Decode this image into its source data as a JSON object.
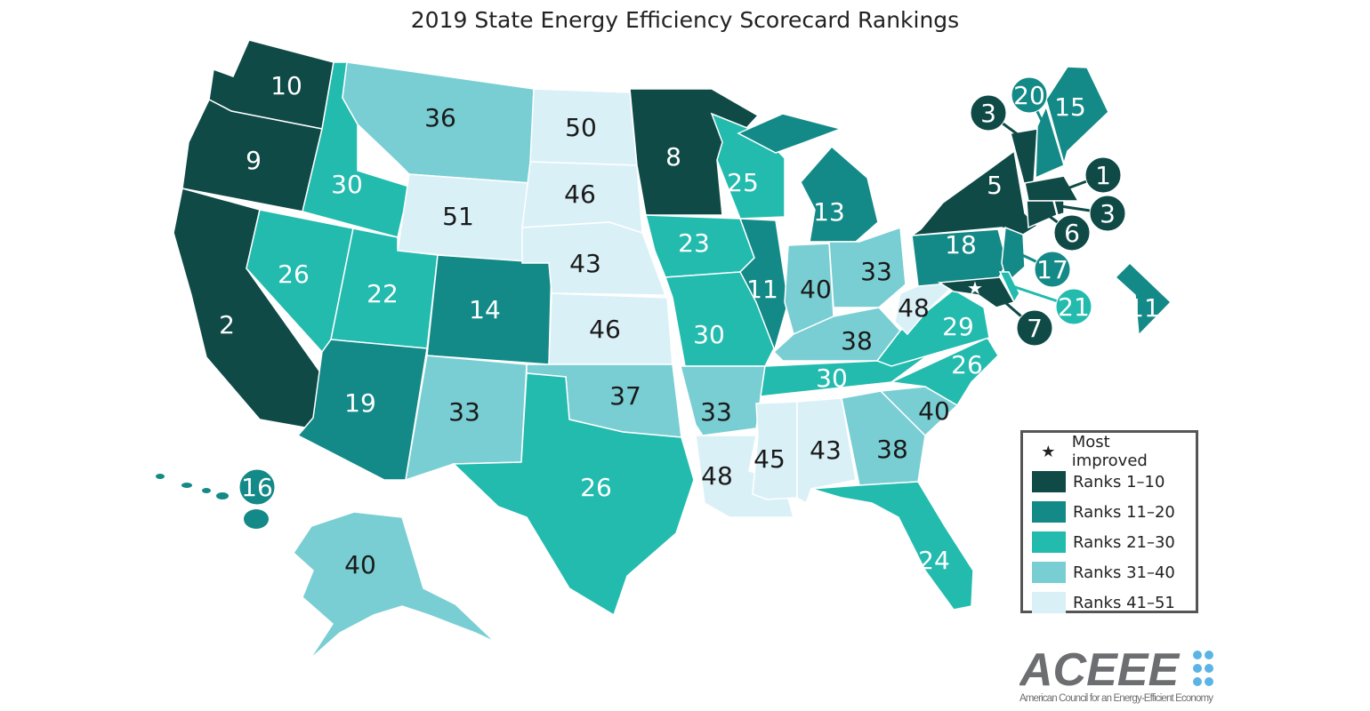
{
  "title": "2019 State Energy Efficiency Scorecard Rankings",
  "colors": {
    "ranks_1_10": "#0f4a47",
    "ranks_11_20": "#138a87",
    "ranks_21_30": "#22bbae",
    "ranks_31_40": "#79ced3",
    "ranks_41_51": "#daf0f7"
  },
  "legend": {
    "most_improved": "Most improved",
    "items": [
      "Ranks 1–10",
      "Ranks 11–20",
      "Ranks 21–30",
      "Ranks 31–40",
      "Ranks 41–51"
    ]
  },
  "most_improved_state": "MD",
  "ranks": {
    "WA": 10,
    "OR": 9,
    "CA": 2,
    "ID": 30,
    "NV": 26,
    "MT": 36,
    "WY": 51,
    "UT": 22,
    "CO": 14,
    "AZ": 19,
    "NM": 33,
    "ND": 50,
    "SD": 46,
    "NE": 43,
    "KS": 46,
    "OK": 37,
    "TX": 26,
    "MN": 8,
    "IA": 23,
    "MO": 30,
    "AR": 33,
    "LA": 48,
    "WI": 25,
    "IL": 11,
    "MI": 13,
    "IN": 40,
    "OH": 33,
    "KY": 38,
    "TN": 30,
    "MS": 45,
    "AL": 43,
    "GA": 38,
    "FL": 24,
    "SC": 40,
    "NC": 26,
    "VA": 29,
    "WV": 48,
    "PA": 18,
    "NY": 5,
    "NJ": 17,
    "MD": 7,
    "DE": 21,
    "VT": 3,
    "NH": 20,
    "ME": 15,
    "MA": 1,
    "RI": 3,
    "CT": 6,
    "DC": 11,
    "HI": 16,
    "AK": 40
  },
  "logo": {
    "name": "ACEEE",
    "tagline": "American Council for an Energy-Efficient Economy"
  }
}
